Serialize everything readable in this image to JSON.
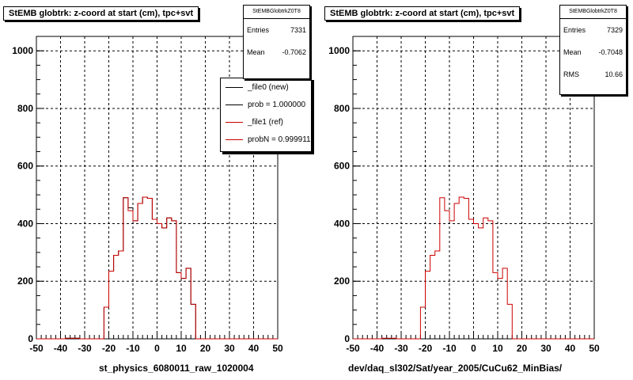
{
  "chart_data": [
    {
      "type": "histogram",
      "title": "StEMB globtrk: z-coord at start (cm), tpc+svt",
      "xlabel": "st_physics_6080011_raw_1020004",
      "xlim": [
        -50,
        50
      ],
      "ylim": [
        0,
        1050
      ],
      "x_ticks": [
        -50,
        -40,
        -30,
        -20,
        -10,
        0,
        10,
        20,
        30,
        40,
        50
      ],
      "y_ticks": [
        0,
        200,
        400,
        600,
        800,
        1000
      ],
      "grid": true,
      "bin_width": 2,
      "stats": {
        "name": "StEMBGlobtrkZ0T8",
        "entries_label": "Entries",
        "entries": "7331",
        "mean_label": "Mean",
        "mean": "-0.7062"
      },
      "legend": {
        "placement": "top-right",
        "entries": [
          {
            "label": "_file0 (new)",
            "color": "#000000"
          },
          {
            "label": "prob = 1.000000",
            "color": "#000000"
          },
          {
            "label": "_file1 (ref)",
            "color": "#cc0000"
          },
          {
            "label": "probN = 0.999911",
            "color": "#cc0000"
          }
        ]
      },
      "series": [
        {
          "name": "_file0 (new)",
          "color": "#000000",
          "bin_edges_start": -50,
          "values": [
            0,
            0,
            0,
            0,
            0,
            0,
            2,
            2,
            2,
            0,
            0,
            0,
            0,
            0,
            110,
            235,
            290,
            305,
            490,
            455,
            410,
            470,
            492,
            488,
            415,
            400,
            385,
            420,
            410,
            230,
            210,
            245,
            120,
            0,
            0,
            0,
            0,
            0,
            0,
            0,
            0,
            0,
            0,
            0,
            0,
            0,
            0,
            0,
            0,
            0
          ]
        },
        {
          "name": "_file1 (ref)",
          "color": "#cc0000",
          "bin_edges_start": -50,
          "values": [
            0,
            0,
            0,
            0,
            0,
            0,
            2,
            2,
            2,
            0,
            0,
            0,
            0,
            0,
            110,
            235,
            290,
            305,
            490,
            445,
            410,
            470,
            492,
            488,
            415,
            400,
            385,
            420,
            410,
            230,
            210,
            245,
            120,
            0,
            0,
            0,
            0,
            0,
            0,
            0,
            0,
            0,
            0,
            0,
            0,
            0,
            0,
            0,
            0,
            0
          ]
        }
      ]
    },
    {
      "type": "histogram",
      "title": "StEMB globtrk: z-coord at start (cm), tpc+svt",
      "xlabel": "dev/daq_sl302/Sat/year_2005/CuCu62_MinBias/",
      "xlim": [
        -50,
        50
      ],
      "ylim": [
        0,
        1050
      ],
      "x_ticks": [
        -50,
        -40,
        -30,
        -20,
        -10,
        0,
        10,
        20,
        30,
        40,
        50
      ],
      "y_ticks": [
        0,
        200,
        400,
        600,
        800,
        1000
      ],
      "grid": true,
      "bin_width": 2,
      "stats": {
        "name": "StEMBGlobtrkZ0T8",
        "entries_label": "Entries",
        "entries": "7329",
        "mean_label": "Mean",
        "mean": "-0.7048",
        "rms_label": "RMS",
        "rms": "10.66"
      },
      "series": [
        {
          "name": "",
          "color": "#cc0000",
          "bin_edges_start": -50,
          "values": [
            0,
            0,
            0,
            0,
            0,
            0,
            2,
            2,
            2,
            0,
            0,
            0,
            0,
            0,
            110,
            235,
            290,
            305,
            490,
            445,
            410,
            470,
            492,
            488,
            415,
            400,
            385,
            420,
            410,
            230,
            210,
            245,
            120,
            0,
            0,
            0,
            0,
            0,
            0,
            0,
            0,
            0,
            0,
            0,
            0,
            0,
            0,
            0,
            0,
            0
          ]
        }
      ]
    }
  ]
}
